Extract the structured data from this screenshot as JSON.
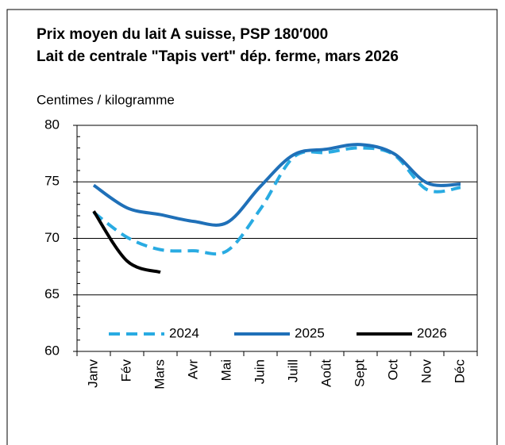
{
  "chart_data": {
    "type": "line",
    "title": "Prix moyen du lait A suisse, PSP 180′000",
    "subtitle": "Lait de centrale \"Tapis vert\" dép. ferme, mars 2026",
    "y_label": "Centimes / kilogramme",
    "categories": [
      "Janv",
      "Fév",
      "Mars",
      "Avr",
      "Mai",
      "Juin",
      "Juill",
      "Août",
      "Sept",
      "Oct",
      "Nov",
      "Déc"
    ],
    "series": [
      {
        "name": "2024",
        "color": "#29abe2",
        "style": "dashed",
        "values": [
          72.3,
          70.1,
          69.0,
          68.9,
          68.9,
          72.6,
          77.2,
          77.6,
          78.0,
          77.4,
          74.3,
          74.5
        ]
      },
      {
        "name": "2025",
        "color": "#1f70b8",
        "style": "solid",
        "values": [
          74.7,
          72.7,
          72.1,
          71.5,
          71.4,
          74.6,
          77.4,
          77.9,
          78.3,
          77.5,
          74.9,
          74.8
        ]
      },
      {
        "name": "2026",
        "color": "#000000",
        "style": "solid",
        "values": [
          72.4,
          68.0,
          67.0,
          null,
          null,
          null,
          null,
          null,
          null,
          null,
          null,
          null
        ]
      }
    ],
    "ylim": [
      60,
      80
    ],
    "yticks": [
      60,
      65,
      70,
      75,
      80
    ],
    "grid": true,
    "legend": "bottom"
  }
}
